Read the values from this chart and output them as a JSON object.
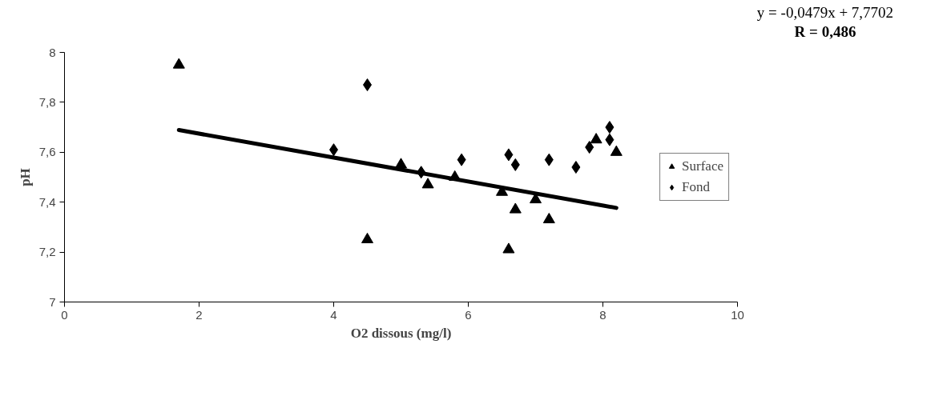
{
  "chart_data": {
    "type": "scatter",
    "xlabel": "O2 dissous (mg/l)",
    "ylabel": "pH",
    "xlim": [
      0,
      10
    ],
    "xticks": [
      0,
      2,
      4,
      6,
      8,
      10
    ],
    "ylim": [
      7,
      8
    ],
    "yticks": [
      7,
      {
        "value": 7.2,
        "label": "7,2"
      },
      {
        "value": 7.4,
        "label": "7,4"
      },
      {
        "value": 7.6,
        "label": "7,6"
      },
      {
        "value": 7.8,
        "label": "7,8"
      },
      8
    ],
    "grid": false,
    "legend": "right",
    "annotations": [
      "y = -0,0479x + 7,7702",
      "R = 0,486"
    ],
    "series": [
      {
        "name": "Surface",
        "color": "#000000",
        "marker": "triangle",
        "x": [
          1.7,
          4.5,
          5.0,
          5.4,
          5.8,
          6.5,
          6.6,
          6.7,
          7.0,
          7.2,
          7.9,
          8.2
        ],
        "values": [
          7.95,
          7.25,
          7.55,
          7.47,
          7.5,
          7.44,
          7.21,
          7.37,
          7.41,
          7.33,
          7.65,
          7.6
        ]
      },
      {
        "name": "Fond",
        "color": "#000000",
        "marker": "diamond",
        "x": [
          4.0,
          4.5,
          5.3,
          5.9,
          6.6,
          6.7,
          7.2,
          7.6,
          7.8,
          8.1,
          8.1
        ],
        "values": [
          7.61,
          7.87,
          7.52,
          7.57,
          7.59,
          7.55,
          7.57,
          7.54,
          7.62,
          7.7,
          7.65
        ]
      },
      {
        "type": "line",
        "color": "#000000",
        "x": [
          1.7,
          8.2
        ],
        "values": [
          7.689,
          7.377
        ]
      }
    ]
  }
}
